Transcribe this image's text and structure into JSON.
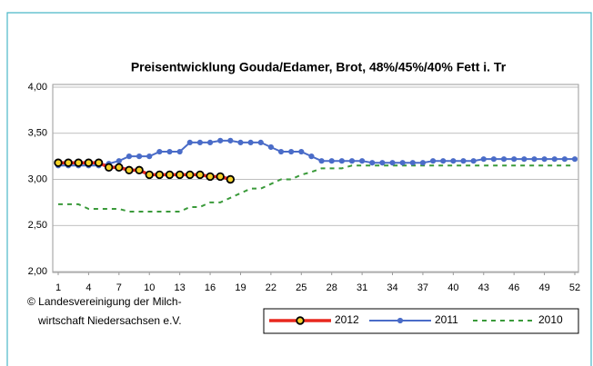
{
  "chart_data": {
    "type": "line",
    "title": "Preisentwicklung Gouda/Edamer, Brot, 48%/45%/40% Fett i. Tr",
    "source": [
      "© Landesvereinigung der Milch-",
      "wirtschaft Niedersachsen e.V."
    ],
    "x": [
      1,
      2,
      3,
      4,
      5,
      6,
      7,
      8,
      9,
      10,
      11,
      12,
      13,
      14,
      15,
      16,
      17,
      18,
      19,
      20,
      21,
      22,
      23,
      24,
      25,
      26,
      27,
      28,
      29,
      30,
      31,
      32,
      33,
      34,
      35,
      36,
      37,
      38,
      39,
      40,
      41,
      42,
      43,
      44,
      45,
      46,
      47,
      48,
      49,
      50,
      51,
      52
    ],
    "xlim": [
      1,
      52
    ],
    "xticks": [
      1,
      4,
      7,
      10,
      13,
      16,
      19,
      22,
      25,
      28,
      31,
      34,
      37,
      40,
      43,
      46,
      49,
      52
    ],
    "ylim": [
      2,
      4
    ],
    "yticks": [
      {
        "value": 2,
        "label": "2,00"
      },
      {
        "value": 2.5,
        "label": "2,50"
      },
      {
        "value": 3,
        "label": "3,00"
      },
      {
        "value": 3.5,
        "label": "3,50"
      },
      {
        "value": 4,
        "label": "4,00"
      }
    ],
    "grid": true,
    "legend": "bottom-right",
    "series": [
      {
        "name": "2012",
        "color": "#e8281e",
        "marker_color": "#f5d22a",
        "values": [
          3.18,
          3.18,
          3.18,
          3.18,
          3.18,
          3.13,
          3.13,
          3.1,
          3.1,
          3.05,
          3.05,
          3.05,
          3.05,
          3.05,
          3.05,
          3.03,
          3.03,
          3.0,
          null,
          null,
          null,
          null,
          null,
          null,
          null,
          null,
          null,
          null,
          null,
          null,
          null,
          null,
          null,
          null,
          null,
          null,
          null,
          null,
          null,
          null,
          null,
          null,
          null,
          null,
          null,
          null,
          null,
          null,
          null,
          null,
          null,
          null
        ]
      },
      {
        "name": "2011",
        "color": "#4a6cc8",
        "values": [
          3.15,
          3.15,
          3.15,
          3.15,
          3.15,
          3.17,
          3.2,
          3.25,
          3.25,
          3.25,
          3.3,
          3.3,
          3.3,
          3.4,
          3.4,
          3.4,
          3.42,
          3.42,
          3.4,
          3.4,
          3.4,
          3.35,
          3.3,
          3.3,
          3.3,
          3.25,
          3.2,
          3.2,
          3.2,
          3.2,
          3.2,
          3.18,
          3.18,
          3.18,
          3.18,
          3.18,
          3.18,
          3.2,
          3.2,
          3.2,
          3.2,
          3.2,
          3.22,
          3.22,
          3.22,
          3.22,
          3.22,
          3.22,
          3.22,
          3.22,
          3.22,
          3.22
        ]
      },
      {
        "name": "2010",
        "color": "#3a9a3a",
        "dash": true,
        "values": [
          2.73,
          2.73,
          2.73,
          2.68,
          2.68,
          2.68,
          2.68,
          2.65,
          2.65,
          2.65,
          2.65,
          2.65,
          2.65,
          2.7,
          2.7,
          2.75,
          2.75,
          2.8,
          2.85,
          2.9,
          2.9,
          2.95,
          3.0,
          3.0,
          3.05,
          3.08,
          3.12,
          3.12,
          3.12,
          3.15,
          3.15,
          3.15,
          3.15,
          3.15,
          3.15,
          3.15,
          3.15,
          3.15,
          3.15,
          3.15,
          3.15,
          3.15,
          3.15,
          3.15,
          3.15,
          3.15,
          3.15,
          3.15,
          3.15,
          3.15,
          3.15,
          3.15
        ]
      }
    ]
  }
}
